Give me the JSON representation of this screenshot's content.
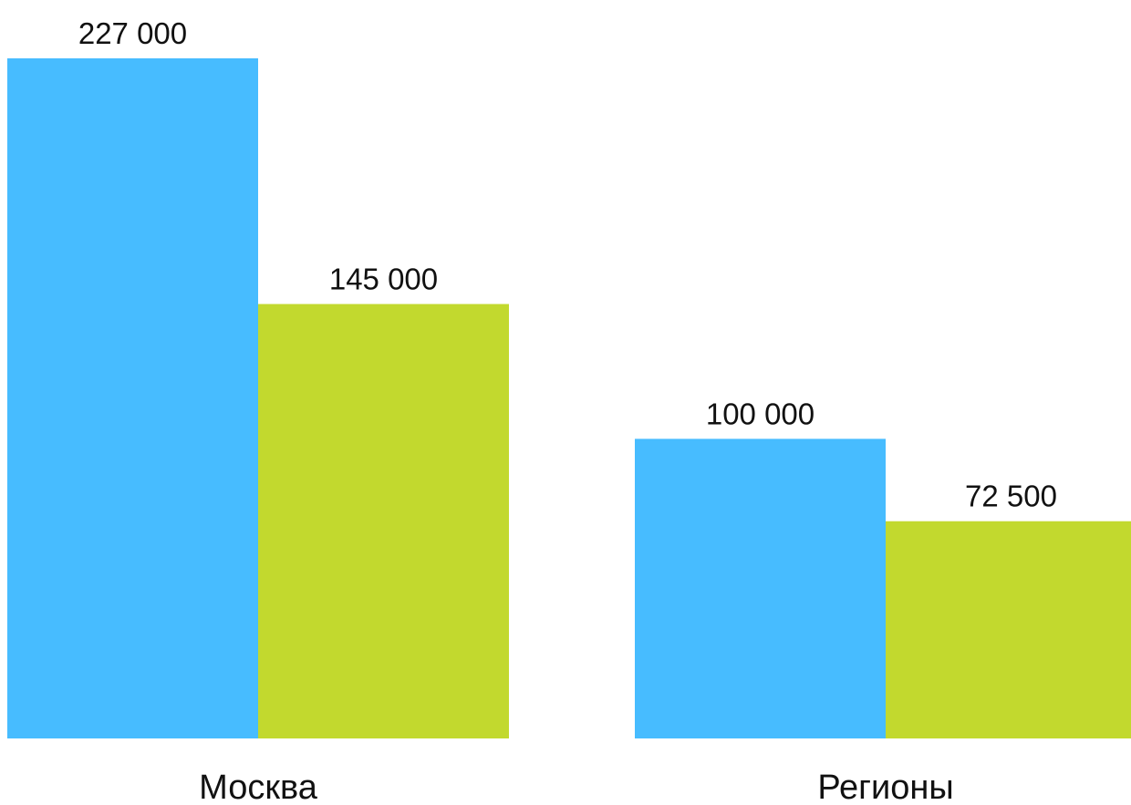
{
  "chart_data": {
    "type": "bar",
    "categories": [
      "Москва",
      "Регионы"
    ],
    "series": [
      {
        "values": [
          227000,
          100000
        ],
        "labels": [
          "227 000",
          "100 000"
        ],
        "color": "#47bcff"
      },
      {
        "values": [
          145000,
          72500
        ],
        "labels": [
          "145 000",
          "72 500"
        ],
        "color": "#c2d92e"
      }
    ],
    "title": "",
    "xlabel": "",
    "ylabel": "",
    "ylim": [
      0,
      227000
    ],
    "grid": false,
    "legend": "none"
  }
}
